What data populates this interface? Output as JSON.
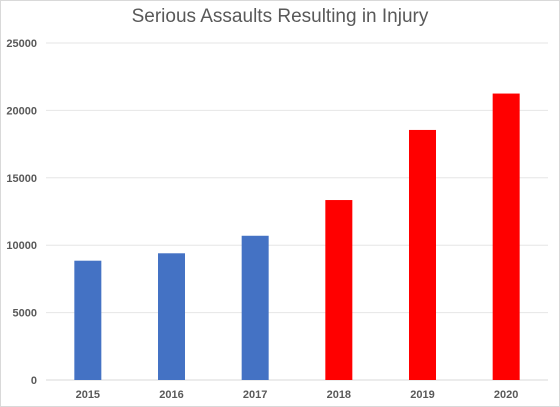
{
  "chart_data": {
    "type": "bar",
    "title": "Serious Assaults Resulting in Injury",
    "xlabel": "",
    "ylabel": "",
    "categories": [
      "2015",
      "2016",
      "2017",
      "2018",
      "2019",
      "2020"
    ],
    "values": [
      8850,
      9400,
      10700,
      13350,
      18550,
      21250
    ],
    "bar_colors": [
      "#4472c4",
      "#4472c4",
      "#4472c4",
      "#ff0000",
      "#ff0000",
      "#ff0000"
    ],
    "ylim": [
      0,
      25000
    ],
    "yticks": [
      "0",
      "5000",
      "10000",
      "15000",
      "20000",
      "25000"
    ],
    "grid": true,
    "legend": "none"
  }
}
